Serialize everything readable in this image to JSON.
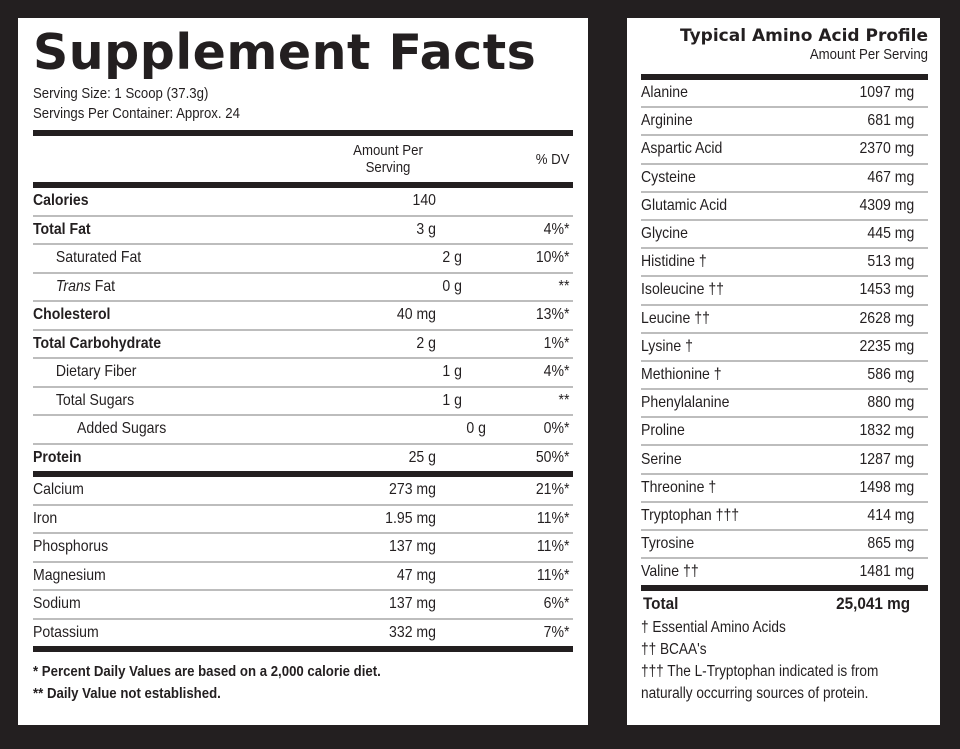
{
  "supplement_facts": {
    "title": "Supplement Facts",
    "serving_size": "Serving Size: 1 Scoop (37.3g)",
    "servings_per_container": "Servings Per Container: Approx. 24",
    "header": {
      "amount_line1": "Amount Per",
      "amount_line2": "Serving",
      "dv": "% DV"
    },
    "macros": [
      {
        "name": "Calories",
        "amount": "140",
        "dv": "",
        "style": "bold"
      },
      {
        "name": "Total Fat",
        "amount": "3 g",
        "dv": "4%*",
        "style": "bold"
      },
      {
        "name": "Saturated Fat",
        "amount": "2 g",
        "dv": "10%*",
        "style": "indent1"
      },
      {
        "name_italic": "Trans",
        "name": " Fat",
        "amount": "0 g",
        "dv": "**",
        "style": "indent1"
      },
      {
        "name": "Cholesterol",
        "amount": "40 mg",
        "dv": "13%*",
        "style": "bold"
      },
      {
        "name": "Total Carbohydrate",
        "amount": "2 g",
        "dv": "1%*",
        "style": "bold"
      },
      {
        "name": "Dietary Fiber",
        "amount": "1 g",
        "dv": "4%*",
        "style": "indent1"
      },
      {
        "name": "Total Sugars",
        "amount": "1 g",
        "dv": "**",
        "style": "indent1"
      },
      {
        "name": "Added Sugars",
        "amount": "0 g",
        "dv": "0%*",
        "style": "indent2"
      },
      {
        "name": "Protein",
        "amount": "25 g",
        "dv": "50%*",
        "style": "bold"
      }
    ],
    "minerals": [
      {
        "name": "Calcium",
        "amount": "273 mg",
        "dv": "21%*"
      },
      {
        "name": "Iron",
        "amount": "1.95 mg",
        "dv": "11%*"
      },
      {
        "name": "Phosphorus",
        "amount": "137 mg",
        "dv": "11%*"
      },
      {
        "name": "Magnesium",
        "amount": "47 mg",
        "dv": "11%*"
      },
      {
        "name": "Sodium",
        "amount": "137 mg",
        "dv": "6%*"
      },
      {
        "name": "Potassium",
        "amount": "332 mg",
        "dv": "7%*"
      }
    ],
    "footnotes": [
      "* Percent Daily Values are based on a 2,000 calorie diet.",
      "** Daily Value not established."
    ]
  },
  "amino_profile": {
    "title": "Typical Amino Acid Profile",
    "subtitle": "Amount Per Serving",
    "items": [
      {
        "name": "Alanine",
        "amount": "1097 mg"
      },
      {
        "name": "Arginine",
        "amount": "681 mg"
      },
      {
        "name": "Aspartic Acid",
        "amount": "2370 mg"
      },
      {
        "name": "Cysteine",
        "amount": "467 mg"
      },
      {
        "name": "Glutamic Acid",
        "amount": "4309 mg"
      },
      {
        "name": "Glycine",
        "amount": "445 mg"
      },
      {
        "name": "Histidine †",
        "amount": "513 mg"
      },
      {
        "name": "Isoleucine ††",
        "amount": "1453 mg"
      },
      {
        "name": "Leucine ††",
        "amount": "2628 mg"
      },
      {
        "name": "Lysine †",
        "amount": "2235 mg"
      },
      {
        "name": "Methionine †",
        "amount": "586 mg"
      },
      {
        "name": "Phenylalanine",
        "amount": "880 mg"
      },
      {
        "name": "Proline",
        "amount": "1832 mg"
      },
      {
        "name": "Serine",
        "amount": "1287 mg"
      },
      {
        "name": "Threonine †",
        "amount": "1498 mg"
      },
      {
        "name": "Tryptophan †††",
        "amount": "414 mg"
      },
      {
        "name": "Tyrosine",
        "amount": "865 mg"
      },
      {
        "name": "Valine ††",
        "amount": "1481 mg"
      }
    ],
    "total_label": "Total",
    "total_amount": "25,041 mg",
    "notes": [
      "† Essential Amino Acids",
      "†† BCAA's",
      "††† The L-Tryptophan indicated is from",
      "naturally occurring sources of protein."
    ]
  }
}
